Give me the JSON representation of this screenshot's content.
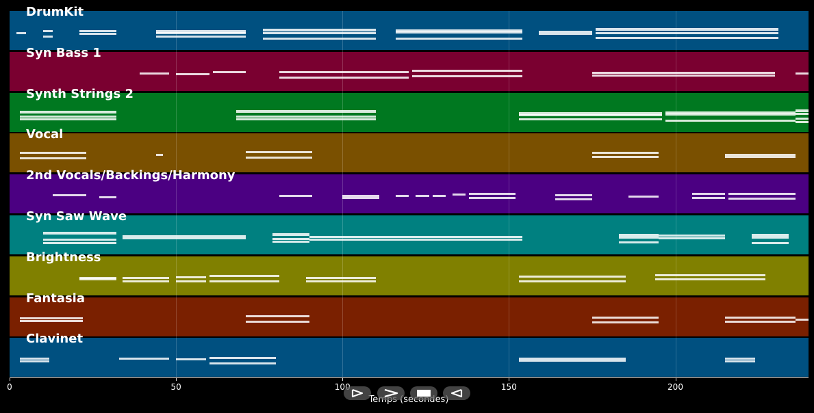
{
  "tracks": [
    {
      "name": "DrumKit",
      "color": "#005080",
      "notes": [
        [
          2,
          5,
          1
        ],
        [
          10,
          13,
          2
        ],
        [
          21,
          32,
          2
        ],
        [
          44,
          71,
          3
        ],
        [
          76,
          110,
          3
        ],
        [
          116,
          154,
          3
        ],
        [
          159,
          175,
          2
        ],
        [
          176,
          231,
          3
        ]
      ]
    },
    {
      "name": "Syn Bass 1",
      "color": "#7a0030",
      "notes": [
        [
          39,
          48,
          1
        ],
        [
          50,
          60,
          1
        ],
        [
          61,
          71,
          1
        ],
        [
          81,
          120,
          2
        ],
        [
          121,
          154,
          2
        ],
        [
          175,
          230,
          2
        ],
        [
          236,
          240,
          1
        ]
      ]
    },
    {
      "name": "Synth Strings 2",
      "color": "#007820",
      "notes": [
        [
          3,
          32,
          3
        ],
        [
          68,
          110,
          3
        ],
        [
          153,
          196,
          3
        ],
        [
          197,
          236,
          3
        ],
        [
          236,
          240,
          4
        ]
      ]
    },
    {
      "name": "Vocal",
      "color": "#7a5000",
      "notes": [
        [
          3,
          23,
          2
        ],
        [
          44,
          46,
          1
        ],
        [
          71,
          91,
          2
        ],
        [
          175,
          195,
          2
        ],
        [
          215,
          236,
          2
        ]
      ]
    },
    {
      "name": "2nd Vocals/Backings/Harmony",
      "color": "#4b0082",
      "notes": [
        [
          13,
          23,
          1
        ],
        [
          27,
          32,
          1
        ],
        [
          81,
          91,
          1
        ],
        [
          100,
          111,
          2
        ],
        [
          116,
          120,
          1
        ],
        [
          122,
          126,
          1
        ],
        [
          127,
          131,
          1
        ],
        [
          133,
          137,
          1
        ],
        [
          138,
          152,
          2
        ],
        [
          164,
          175,
          2
        ],
        [
          186,
          195,
          1
        ],
        [
          205,
          215,
          2
        ],
        [
          216,
          236,
          2
        ]
      ]
    },
    {
      "name": "Syn Saw Wave",
      "color": "#008080",
      "notes": [
        [
          10,
          32,
          3
        ],
        [
          34,
          71,
          2
        ],
        [
          79,
          90,
          3
        ],
        [
          90,
          154,
          2
        ],
        [
          183,
          195,
          3
        ],
        [
          195,
          215,
          2
        ],
        [
          223,
          234,
          3
        ]
      ]
    },
    {
      "name": "Brightness",
      "color": "#808000",
      "notes": [
        [
          21,
          32,
          2
        ],
        [
          34,
          48,
          2
        ],
        [
          50,
          59,
          2
        ],
        [
          60,
          81,
          2
        ],
        [
          89,
          110,
          2
        ],
        [
          153,
          185,
          2
        ],
        [
          194,
          227,
          2
        ]
      ]
    },
    {
      "name": "Fantasia",
      "color": "#7a2000",
      "notes": [
        [
          3,
          22,
          2
        ],
        [
          71,
          90,
          2
        ],
        [
          175,
          195,
          2
        ],
        [
          215,
          236,
          2
        ],
        [
          236,
          240,
          1
        ]
      ]
    },
    {
      "name": "Clavinet",
      "color": "#005080",
      "notes": [
        [
          3,
          12,
          2
        ],
        [
          33,
          48,
          1
        ],
        [
          50,
          59,
          1
        ],
        [
          60,
          80,
          2
        ],
        [
          153,
          185,
          2
        ],
        [
          215,
          224,
          2
        ]
      ]
    }
  ],
  "axis": {
    "xlabel": "Temps (secondes)",
    "range": [
      0,
      240
    ],
    "ticks": [
      {
        "value": 0,
        "label": "0"
      },
      {
        "value": 50,
        "label": "50"
      },
      {
        "value": 100,
        "label": "100"
      },
      {
        "value": 150,
        "label": "150"
      },
      {
        "value": 200,
        "label": "200"
      }
    ]
  },
  "transport": [
    {
      "name": "play-button",
      "icon": "play-icon"
    },
    {
      "name": "fast-forward-button",
      "icon": "fast-forward-icon"
    },
    {
      "name": "stop-button",
      "icon": "stop-icon"
    },
    {
      "name": "rewind-button",
      "icon": "rewind-icon"
    }
  ]
}
